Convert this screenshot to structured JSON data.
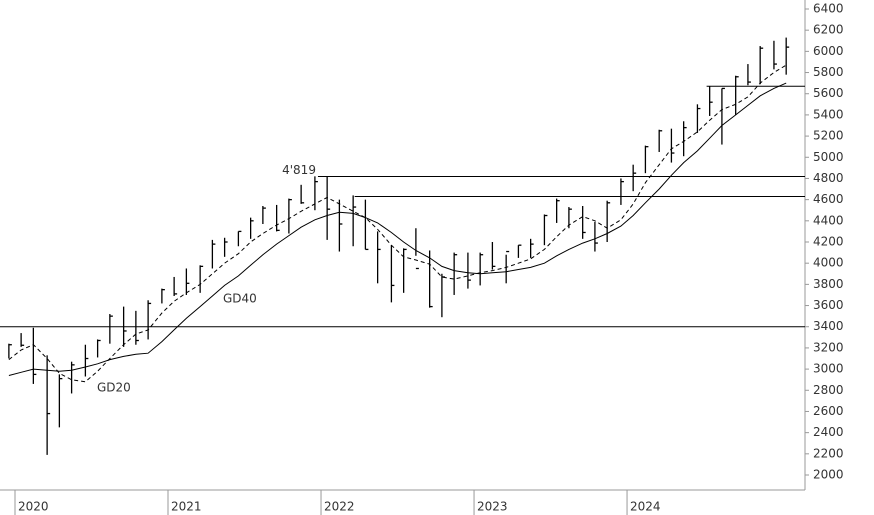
{
  "chart_data": {
    "type": "ohlc",
    "x": [
      2019.96,
      2020.04,
      2020.12,
      2020.21,
      2020.29,
      2020.37,
      2020.46,
      2020.54,
      2020.62,
      2020.71,
      2020.79,
      2020.87,
      2020.96,
      2021.04,
      2021.12,
      2021.21,
      2021.29,
      2021.37,
      2021.46,
      2021.54,
      2021.62,
      2021.71,
      2021.79,
      2021.87,
      2021.96,
      2022.04,
      2022.12,
      2022.21,
      2022.29,
      2022.37,
      2022.46,
      2022.54,
      2022.62,
      2022.71,
      2022.79,
      2022.87,
      2022.96,
      2023.04,
      2023.12,
      2023.21,
      2023.29,
      2023.37,
      2023.46,
      2023.54,
      2023.62,
      2023.71,
      2023.79,
      2023.87,
      2023.96,
      2024.04,
      2024.12,
      2024.21,
      2024.29,
      2024.37,
      2024.46,
      2024.54,
      2024.62,
      2024.71,
      2024.79,
      2024.87,
      2024.96,
      2025.04
    ],
    "high": [
      3240,
      3340,
      3390,
      3130,
      2950,
      3070,
      3230,
      3280,
      3520,
      3590,
      3550,
      3650,
      3760,
      3870,
      3950,
      3980,
      4220,
      4240,
      4300,
      4430,
      4540,
      4550,
      4610,
      4740,
      4820,
      4819,
      4600,
      4640,
      4600,
      4300,
      4170,
      4140,
      4330,
      4120,
      3900,
      4100,
      4100,
      4100,
      4200,
      4080,
      4170,
      4230,
      4460,
      4610,
      4530,
      4540,
      4390,
      4590,
      4800,
      4930,
      5110,
      5260,
      5270,
      5340,
      5500,
      5670,
      5650,
      5770,
      5880,
      6050,
      6100,
      6130
    ],
    "low": [
      3100,
      3210,
      2860,
      2190,
      2450,
      2770,
      2930,
      3110,
      3240,
      3210,
      3230,
      3280,
      3620,
      3690,
      3700,
      3720,
      3950,
      4060,
      4160,
      4230,
      4370,
      4300,
      4280,
      4560,
      4500,
      4220,
      4110,
      4160,
      4130,
      3810,
      3630,
      3720,
      4070,
      3580,
      3490,
      3700,
      3760,
      3790,
      3940,
      3810,
      4050,
      4050,
      4170,
      4380,
      4330,
      4230,
      4110,
      4200,
      4550,
      4680,
      4850,
      5050,
      4950,
      5010,
      5230,
      5390,
      5120,
      5400,
      5680,
      5690,
      5830,
      5780
    ],
    "close": [
      3230,
      3225,
      2950,
      2580,
      2910,
      3040,
      3100,
      3270,
      3500,
      3360,
      3270,
      3620,
      3750,
      3710,
      3810,
      3970,
      4180,
      4200,
      4300,
      4400,
      4520,
      4310,
      4600,
      4570,
      4770,
      4510,
      4370,
      4530,
      4130,
      4130,
      3790,
      4130,
      3950,
      3590,
      3870,
      4080,
      3840,
      4080,
      3970,
      4110,
      4170,
      4180,
      4450,
      4590,
      4510,
      4290,
      4190,
      4570,
      4770,
      4850,
      5100,
      5250,
      5040,
      5280,
      5460,
      5520,
      5650,
      5760,
      5710,
      6030,
      5880,
      6040
    ],
    "series": [
      {
        "name": "GD20",
        "dash": true,
        "values": [
          3090,
          3180,
          3230,
          3100,
          2960,
          2900,
          2880,
          2980,
          3100,
          3230,
          3330,
          3370,
          3530,
          3640,
          3720,
          3800,
          3900,
          4000,
          4090,
          4200,
          4280,
          4360,
          4420,
          4490,
          4560,
          4620,
          4560,
          4490,
          4430,
          4320,
          4170,
          4060,
          4030,
          3990,
          3870,
          3850,
          3880,
          3910,
          3930,
          3960,
          4000,
          4040,
          4130,
          4250,
          4360,
          4440,
          4400,
          4330,
          4410,
          4560,
          4760,
          4930,
          5080,
          5150,
          5240,
          5350,
          5450,
          5500,
          5570,
          5700,
          5800,
          5870
        ]
      },
      {
        "name": "GD40",
        "dash": false,
        "values": [
          2940,
          2970,
          3000,
          2990,
          2980,
          2990,
          3020,
          3050,
          3090,
          3120,
          3140,
          3150,
          3260,
          3370,
          3480,
          3590,
          3690,
          3790,
          3880,
          3980,
          4080,
          4180,
          4260,
          4340,
          4410,
          4450,
          4480,
          4470,
          4430,
          4380,
          4290,
          4200,
          4120,
          4050,
          3970,
          3930,
          3910,
          3900,
          3910,
          3920,
          3940,
          3960,
          4000,
          4070,
          4130,
          4190,
          4230,
          4280,
          4350,
          4450,
          4570,
          4700,
          4830,
          4950,
          5060,
          5180,
          5300,
          5400,
          5490,
          5580,
          5650,
          5700
        ]
      }
    ],
    "levels": [
      {
        "value": 3400,
        "x_start": 2019.902
      },
      {
        "value": 4819,
        "x_start": 2021.98,
        "label": "4'819"
      },
      {
        "value": 4630,
        "x_start": 2022.22
      },
      {
        "value": 5670,
        "x_start": 2024.52
      }
    ],
    "xlim": [
      2019.902,
      2025.163
    ],
    "xticks": [
      2020,
      2021,
      2022,
      2023,
      2024
    ],
    "ylim": [
      1900,
      6450
    ],
    "yticks": [
      2000,
      2200,
      2400,
      2600,
      2800,
      3000,
      3200,
      3400,
      3600,
      3800,
      4000,
      4200,
      4400,
      4600,
      4800,
      5000,
      5200,
      5400,
      5600,
      5800,
      6000,
      6200,
      6400
    ],
    "color": "#000000"
  }
}
